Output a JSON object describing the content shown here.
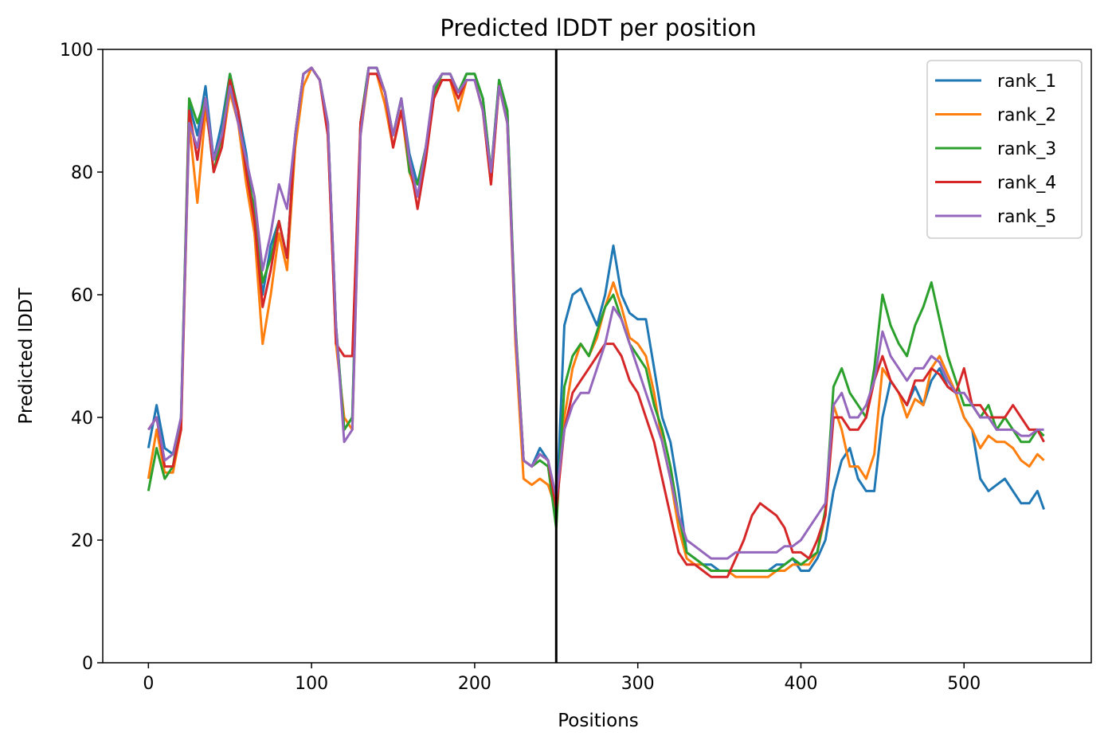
{
  "chart_data": {
    "type": "line",
    "title": "Predicted lDDT per position",
    "xlabel": "Positions",
    "ylabel": "Predicted lDDT",
    "xlim": [
      -28,
      578
    ],
    "ylim": [
      0,
      100
    ],
    "xticks": [
      0,
      100,
      200,
      300,
      400,
      500
    ],
    "yticks": [
      0,
      20,
      40,
      60,
      80,
      100
    ],
    "grid": false,
    "legend_position": "top-right",
    "vline": {
      "x": 250,
      "color": "#000000"
    },
    "x": [
      0,
      5,
      10,
      15,
      20,
      25,
      30,
      35,
      40,
      45,
      50,
      55,
      60,
      65,
      70,
      75,
      80,
      85,
      90,
      95,
      100,
      105,
      110,
      115,
      120,
      125,
      130,
      135,
      140,
      145,
      150,
      155,
      160,
      165,
      170,
      175,
      180,
      185,
      190,
      195,
      200,
      205,
      210,
      215,
      220,
      225,
      230,
      235,
      240,
      245,
      250,
      255,
      260,
      265,
      270,
      275,
      280,
      285,
      290,
      295,
      300,
      305,
      310,
      315,
      320,
      325,
      330,
      335,
      340,
      345,
      350,
      355,
      360,
      365,
      370,
      375,
      380,
      385,
      390,
      395,
      400,
      405,
      410,
      415,
      420,
      425,
      430,
      435,
      440,
      445,
      450,
      455,
      460,
      465,
      470,
      475,
      480,
      485,
      490,
      495,
      500,
      505,
      510,
      515,
      520,
      525,
      530,
      535,
      540,
      545,
      549
    ],
    "series": [
      {
        "name": "rank_1",
        "color": "#1f77b4",
        "values": [
          35,
          42,
          35,
          34,
          40,
          91,
          86,
          94,
          82,
          88,
          96,
          90,
          83,
          72,
          60,
          68,
          72,
          66,
          86,
          96,
          97,
          95,
          88,
          55,
          38,
          40,
          88,
          97,
          97,
          93,
          86,
          92,
          83,
          78,
          84,
          93,
          96,
          96,
          93,
          96,
          96,
          92,
          80,
          95,
          90,
          55,
          33,
          32,
          35,
          33,
          24,
          55,
          60,
          61,
          58,
          55,
          60,
          68,
          60,
          57,
          56,
          56,
          48,
          40,
          36,
          28,
          18,
          17,
          16,
          16,
          15,
          15,
          15,
          15,
          15,
          15,
          15,
          16,
          16,
          17,
          15,
          15,
          17,
          20,
          28,
          33,
          35,
          30,
          28,
          28,
          40,
          46,
          44,
          42,
          45,
          42,
          46,
          48,
          45,
          44,
          40,
          38,
          30,
          28,
          29,
          30,
          28,
          26,
          26,
          28,
          25
        ]
      },
      {
        "name": "rank_2",
        "color": "#ff7f0e",
        "values": [
          30,
          38,
          31,
          31,
          38,
          88,
          75,
          90,
          82,
          84,
          93,
          88,
          78,
          70,
          52,
          60,
          70,
          64,
          84,
          94,
          97,
          95,
          86,
          52,
          40,
          38,
          86,
          96,
          96,
          91,
          84,
          90,
          80,
          76,
          82,
          93,
          95,
          95,
          90,
          95,
          95,
          90,
          78,
          94,
          88,
          52,
          30,
          29,
          30,
          29,
          25,
          40,
          48,
          52,
          50,
          53,
          58,
          62,
          58,
          53,
          52,
          50,
          44,
          36,
          30,
          22,
          17,
          16,
          16,
          15,
          15,
          15,
          14,
          14,
          14,
          14,
          14,
          15,
          15,
          16,
          16,
          16,
          18,
          24,
          42,
          38,
          32,
          32,
          30,
          34,
          48,
          46,
          44,
          40,
          43,
          42,
          48,
          50,
          47,
          44,
          40,
          38,
          35,
          37,
          36,
          36,
          35,
          33,
          32,
          34,
          33
        ]
      },
      {
        "name": "rank_3",
        "color": "#2ca02c",
        "values": [
          28,
          35,
          30,
          32,
          40,
          92,
          88,
          92,
          80,
          86,
          96,
          90,
          80,
          74,
          62,
          66,
          72,
          66,
          86,
          96,
          97,
          95,
          88,
          55,
          38,
          40,
          88,
          97,
          97,
          93,
          86,
          92,
          80,
          78,
          84,
          93,
          96,
          96,
          93,
          96,
          96,
          92,
          80,
          95,
          90,
          55,
          33,
          32,
          33,
          32,
          22,
          45,
          50,
          52,
          50,
          54,
          58,
          60,
          56,
          52,
          50,
          48,
          42,
          38,
          32,
          24,
          18,
          17,
          16,
          15,
          15,
          15,
          15,
          15,
          15,
          15,
          15,
          15,
          16,
          17,
          16,
          17,
          18,
          25,
          45,
          48,
          44,
          42,
          40,
          48,
          60,
          55,
          52,
          50,
          55,
          58,
          62,
          56,
          50,
          46,
          42,
          42,
          40,
          42,
          38,
          40,
          38,
          36,
          36,
          38,
          37
        ]
      },
      {
        "name": "rank_4",
        "color": "#d62728",
        "values": [
          38,
          40,
          32,
          32,
          38,
          90,
          82,
          92,
          80,
          84,
          95,
          90,
          80,
          72,
          58,
          64,
          72,
          66,
          86,
          96,
          97,
          95,
          86,
          52,
          50,
          50,
          88,
          96,
          96,
          93,
          84,
          90,
          82,
          74,
          82,
          92,
          95,
          95,
          92,
          95,
          95,
          90,
          78,
          94,
          88,
          54,
          33,
          32,
          34,
          33,
          25,
          38,
          44,
          46,
          48,
          50,
          52,
          52,
          50,
          46,
          44,
          40,
          36,
          30,
          24,
          18,
          16,
          16,
          15,
          14,
          14,
          14,
          17,
          20,
          24,
          26,
          25,
          24,
          22,
          18,
          18,
          17,
          20,
          24,
          40,
          40,
          38,
          38,
          40,
          46,
          50,
          46,
          44,
          42,
          46,
          46,
          48,
          47,
          45,
          44,
          48,
          42,
          42,
          40,
          40,
          40,
          42,
          40,
          38,
          38,
          36
        ]
      },
      {
        "name": "rank_5",
        "color": "#9467bd",
        "values": [
          38,
          40,
          33,
          34,
          40,
          88,
          84,
          92,
          82,
          86,
          94,
          88,
          82,
          76,
          64,
          70,
          78,
          74,
          86,
          96,
          97,
          95,
          88,
          55,
          36,
          38,
          86,
          97,
          97,
          93,
          86,
          92,
          82,
          76,
          84,
          94,
          96,
          96,
          93,
          95,
          95,
          90,
          80,
          94,
          88,
          54,
          33,
          32,
          34,
          33,
          27,
          38,
          42,
          44,
          44,
          48,
          52,
          58,
          56,
          52,
          48,
          44,
          40,
          36,
          30,
          24,
          20,
          19,
          18,
          17,
          17,
          17,
          18,
          18,
          18,
          18,
          18,
          18,
          19,
          19,
          20,
          22,
          24,
          26,
          42,
          44,
          40,
          40,
          42,
          46,
          54,
          50,
          48,
          46,
          48,
          48,
          50,
          49,
          46,
          44,
          44,
          42,
          40,
          40,
          38,
          38,
          38,
          37,
          37,
          38,
          38
        ]
      }
    ]
  }
}
